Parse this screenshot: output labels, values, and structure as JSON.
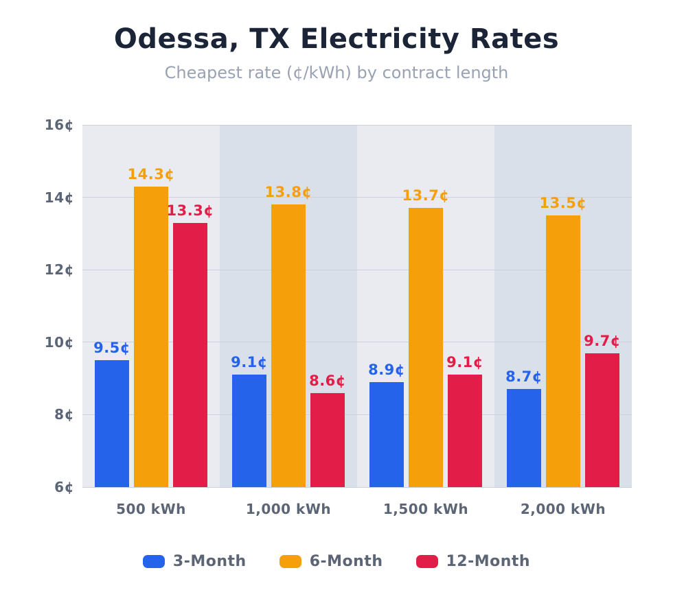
{
  "header": {
    "title": "Odessa, TX Electricity Rates",
    "subtitle": "Cheapest rate (¢/kWh) by contract length"
  },
  "chart_data": {
    "type": "bar",
    "title": "Odessa, TX Electricity Rates",
    "subtitle": "Cheapest rate (¢/kWh) by contract length",
    "categories": [
      "500 kWh",
      "1,000 kWh",
      "1,500 kWh",
      "2,000 kWh"
    ],
    "series": [
      {
        "name": "3-Month",
        "color": "#2563EB",
        "values": [
          9.5,
          9.1,
          8.9,
          8.7
        ]
      },
      {
        "name": "6-Month",
        "color": "#F5A00B",
        "values": [
          14.3,
          13.8,
          13.7,
          13.5
        ]
      },
      {
        "name": "12-Month",
        "color": "#E11D48",
        "values": [
          13.3,
          8.6,
          9.1,
          9.7
        ]
      }
    ],
    "ylim": [
      6,
      16
    ],
    "ytick_step": 2,
    "ytick_labels": [
      "6¢",
      "8¢",
      "10¢",
      "12¢",
      "14¢",
      "16¢"
    ],
    "value_labels": [
      [
        "9.5¢",
        "9.1¢",
        "8.9¢",
        "8.7¢"
      ],
      [
        "14.3¢",
        "13.8¢",
        "13.7¢",
        "13.5¢"
      ],
      [
        "13.3¢",
        "8.6¢",
        "9.1¢",
        "9.7¢"
      ]
    ],
    "grid": true,
    "legend_position": "bottom",
    "legend_labels": [
      "3-Month",
      "6-Month",
      "12-Month"
    ]
  },
  "colors": {
    "title_text": "#1B2537",
    "subtitle_text": "#99A2B3",
    "axis_label_text": "#5C6575",
    "gridline": "#CBD1DC",
    "band_light": "#E9EBF0",
    "band_dark": "#DAE0EA",
    "background": "#FFFFFF"
  }
}
